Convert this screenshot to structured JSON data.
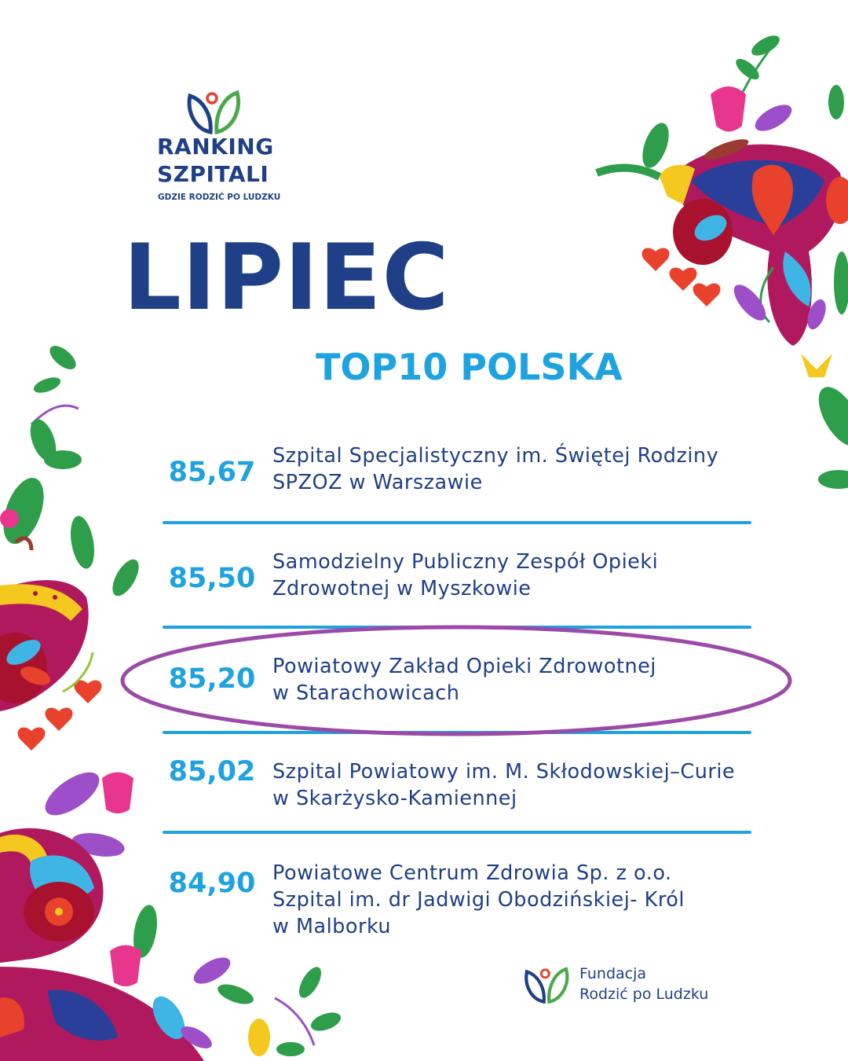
{
  "header": {
    "logo_line1": "RANKING",
    "logo_line2": "SZPITALI",
    "logo_tagline": "GDZIE RODZIĆ PO LUDZKU",
    "month": "LIPIEC",
    "subtitle": "TOP10 POLSKA"
  },
  "ranking": [
    {
      "score": "85,67",
      "name_lines": [
        "Szpital Specjalistyczny im. Świętej Rodziny",
        "SPZOZ w Warszawie"
      ],
      "highlighted": false
    },
    {
      "score": "85,50",
      "name_lines": [
        "Samodzielny Publiczny Zespół Opieki",
        "Zdrowotnej w Myszkowie"
      ],
      "highlighted": false
    },
    {
      "score": "85,20",
      "name_lines": [
        "Powiatowy Zakład Opieki Zdrowotnej",
        "w Starachowicach"
      ],
      "highlighted": true
    },
    {
      "score": "85,02",
      "name_lines": [
        "Szpital Powiatowy im. M. Skłodowskiej–Curie",
        "w Skarżysko-Kamiennej"
      ],
      "highlighted": false
    },
    {
      "score": "84,90",
      "name_lines": [
        "Powiatowe Centrum Zdrowia Sp. z o.o.",
        "Szpital im. dr Jadwigi Obodzińskiej- Król",
        "w Malborku"
      ],
      "highlighted": false
    }
  ],
  "footer": {
    "org_line1": "Fundacja",
    "org_line2": "Rodzić po Ludzku"
  },
  "colors": {
    "navy": "#1f3f87",
    "accent_blue": "#1ea3e0",
    "highlight_oval": "#9b4aa8",
    "logo_green": "#4aa84a",
    "logo_red": "#e8412c"
  },
  "icons": {
    "logo_mark": "tulip-leaves-icon",
    "decor_top_right": "folk-floral-uterus-illustration",
    "decor_left": "folk-floral-uterus-illustration",
    "decor_bottom_left": "folk-floral-illustration"
  }
}
